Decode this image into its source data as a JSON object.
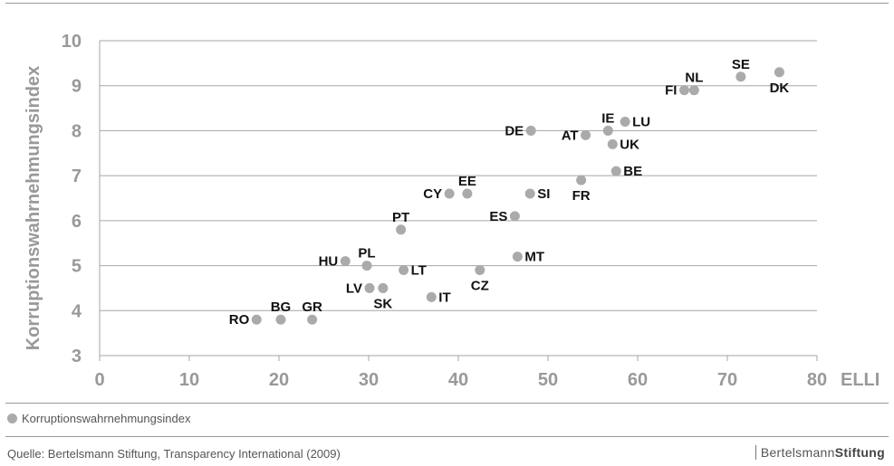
{
  "chart_data": {
    "type": "scatter",
    "xlabel": "ELLI",
    "ylabel": "Korruptionswahrnehmungsindex",
    "xlim": [
      0,
      80
    ],
    "ylim": [
      3,
      10
    ],
    "xticks": [
      0,
      10,
      20,
      30,
      40,
      50,
      60,
      70,
      80
    ],
    "yticks": [
      3,
      4,
      5,
      6,
      7,
      8,
      9,
      10
    ],
    "grid": "horizontal",
    "point_color": "#aaaaaa",
    "series": [
      {
        "name": "Korruptionswahrnehmungsindex",
        "points": [
          {
            "label": "RO",
            "x": 17.5,
            "y": 3.8,
            "pos": "left"
          },
          {
            "label": "BG",
            "x": 20.2,
            "y": 3.8,
            "pos": "above"
          },
          {
            "label": "GR",
            "x": 23.7,
            "y": 3.8,
            "pos": "above"
          },
          {
            "label": "LV",
            "x": 30.1,
            "y": 4.5,
            "pos": "left"
          },
          {
            "label": "SK",
            "x": 31.6,
            "y": 4.5,
            "pos": "below"
          },
          {
            "label": "HU",
            "x": 27.4,
            "y": 5.1,
            "pos": "left"
          },
          {
            "label": "PL",
            "x": 29.8,
            "y": 5.0,
            "pos": "above"
          },
          {
            "label": "LT",
            "x": 33.9,
            "y": 4.9,
            "pos": "right"
          },
          {
            "label": "IT",
            "x": 37.0,
            "y": 4.3,
            "pos": "right"
          },
          {
            "label": "PT",
            "x": 33.6,
            "y": 5.8,
            "pos": "above"
          },
          {
            "label": "CY",
            "x": 39.0,
            "y": 6.6,
            "pos": "left"
          },
          {
            "label": "EE",
            "x": 41.0,
            "y": 6.6,
            "pos": "above"
          },
          {
            "label": "CZ",
            "x": 42.4,
            "y": 4.9,
            "pos": "below"
          },
          {
            "label": "ES",
            "x": 46.3,
            "y": 6.1,
            "pos": "left"
          },
          {
            "label": "MT",
            "x": 46.6,
            "y": 5.2,
            "pos": "right"
          },
          {
            "label": "SI",
            "x": 48.0,
            "y": 6.6,
            "pos": "right"
          },
          {
            "label": "DE",
            "x": 48.1,
            "y": 8.0,
            "pos": "left"
          },
          {
            "label": "FR",
            "x": 53.7,
            "y": 6.9,
            "pos": "below"
          },
          {
            "label": "AT",
            "x": 54.2,
            "y": 7.9,
            "pos": "left"
          },
          {
            "label": "IE",
            "x": 56.7,
            "y": 8.0,
            "pos": "above"
          },
          {
            "label": "UK",
            "x": 57.2,
            "y": 7.7,
            "pos": "right"
          },
          {
            "label": "BE",
            "x": 57.6,
            "y": 7.1,
            "pos": "right"
          },
          {
            "label": "LU",
            "x": 58.6,
            "y": 8.2,
            "pos": "right"
          },
          {
            "label": "FI",
            "x": 65.2,
            "y": 8.9,
            "pos": "left"
          },
          {
            "label": "NL",
            "x": 66.3,
            "y": 8.9,
            "pos": "above"
          },
          {
            "label": "SE",
            "x": 71.5,
            "y": 9.2,
            "pos": "above"
          },
          {
            "label": "DK",
            "x": 75.8,
            "y": 9.3,
            "pos": "below"
          }
        ]
      }
    ]
  },
  "legend": {
    "label": "Korruptionswahrnehmungsindex"
  },
  "footer": {
    "source": "Quelle: Bertelsmann Stiftung, Transparency International (2009)",
    "brand_regular": "Bertelsmann",
    "brand_bold": "Stiftung"
  }
}
